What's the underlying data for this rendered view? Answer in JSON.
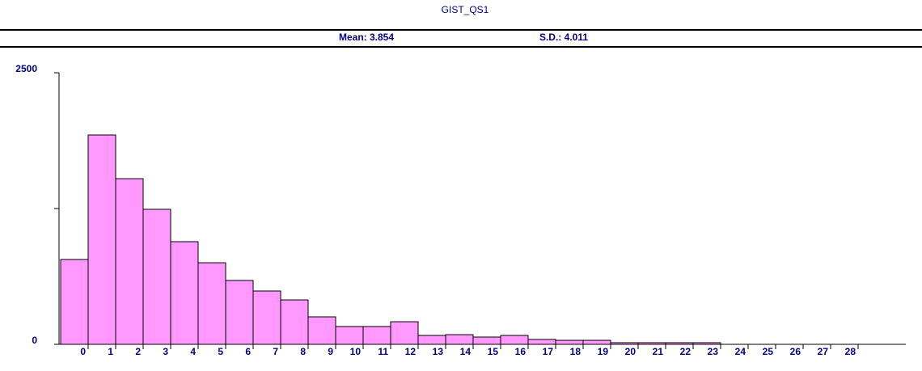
{
  "chart_data": {
    "type": "bar",
    "title": "GIST_QS1",
    "mean_text": "Mean: 3.854",
    "sd_text": "S.D.: 4.011",
    "categories": [
      "0",
      "1",
      "2",
      "3",
      "4",
      "5",
      "6",
      "7",
      "8",
      "9",
      "10",
      "11",
      "12",
      "13",
      "14",
      "15",
      "16",
      "17",
      "18",
      "19",
      "20",
      "21",
      "22",
      "23",
      "24",
      "25",
      "26",
      "27",
      "28"
    ],
    "values": [
      781,
      1927,
      1525,
      1243,
      945,
      751,
      588,
      491,
      409,
      253,
      164,
      164,
      208,
      82,
      89,
      67,
      82,
      45,
      37,
      37,
      15,
      15,
      15,
      15,
      0,
      0,
      0,
      0,
      0
    ],
    "color": "#ff99ff",
    "ylim": [
      0,
      2500
    ],
    "yticks": [
      0,
      2500
    ],
    "yminor_ticks": [
      1250
    ]
  }
}
